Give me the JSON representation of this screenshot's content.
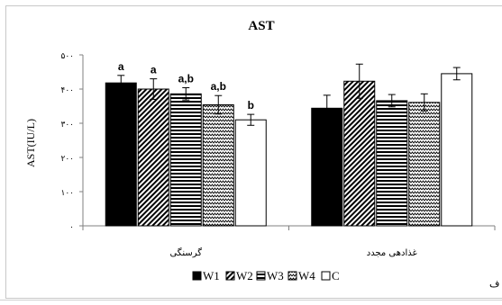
{
  "chart_data": {
    "type": "bar",
    "title": "AST",
    "ylabel": "AST(IU/L)",
    "xlabel": "",
    "ylim": [
      0,
      500
    ],
    "yticks": [
      0,
      100,
      200,
      300,
      400,
      500
    ],
    "ytick_labels": [
      "۰",
      "۱۰۰",
      "۲۰۰",
      "۳۰۰",
      "۴۰۰",
      "۵۰۰"
    ],
    "grid": false,
    "legend_position": "bottom",
    "categories": [
      "گرسنگی",
      "غذادهی مجدد"
    ],
    "series": [
      {
        "name": "W1",
        "pattern": "solid",
        "values": [
          418,
          344
        ],
        "errors": [
          22,
          38
        ],
        "labels": [
          "a",
          ""
        ]
      },
      {
        "name": "W2",
        "pattern": "diagonal-hatch",
        "values": [
          400,
          423
        ],
        "errors": [
          30,
          50
        ],
        "labels": [
          "a",
          ""
        ]
      },
      {
        "name": "W3",
        "pattern": "horizontal-stripes",
        "values": [
          386,
          366
        ],
        "errors": [
          18,
          18
        ],
        "labels": [
          "a,b",
          ""
        ]
      },
      {
        "name": "W4",
        "pattern": "zigzag",
        "values": [
          354,
          361
        ],
        "errors": [
          27,
          25
        ],
        "labels": [
          "a,b",
          ""
        ]
      },
      {
        "name": "C",
        "pattern": "white",
        "values": [
          310,
          445
        ],
        "errors": [
          16,
          18
        ],
        "labels": [
          "b",
          ""
        ]
      }
    ]
  },
  "edge_fragment": "ف",
  "colors": {
    "bar_outline": "#000000",
    "axis": "#808080",
    "frame": "#c8c8c8",
    "background": "#ffffff"
  }
}
